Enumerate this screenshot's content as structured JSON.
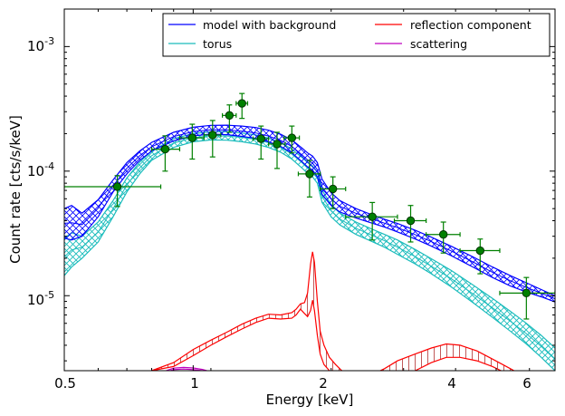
{
  "chart_data": {
    "type": "line",
    "xlabel": "Energy [keV]",
    "ylabel": "Count rate [cts/s/keV]",
    "xscale": "log",
    "yscale": "log",
    "xlim": [
      0.5,
      7.0
    ],
    "ylim": [
      2.5e-06,
      0.002
    ],
    "xticks": [
      {
        "value": 0.5,
        "label": "0.5"
      },
      {
        "value": 1,
        "label": "1"
      },
      {
        "value": 2,
        "label": "2"
      },
      {
        "value": 4,
        "label": "4"
      },
      {
        "value": 6,
        "label": "6"
      }
    ],
    "yticks": [
      {
        "value": 1e-05,
        "base": "10",
        "exp": "-5"
      },
      {
        "value": 0.0001,
        "base": "10",
        "exp": "-4"
      },
      {
        "value": 0.001,
        "base": "10",
        "exp": "-3"
      }
    ],
    "grid": false,
    "legend": {
      "placement": "top-right",
      "columns": 2,
      "entries": [
        {
          "label": "model with background",
          "color": "#0000ff"
        },
        {
          "label": "reflection component",
          "color": "#ff0000"
        },
        {
          "label": "torus",
          "color": "#1bbcbc"
        },
        {
          "label": "scattering",
          "color": "#bf00bf"
        }
      ]
    },
    "series": [
      {
        "key": "model",
        "color": "#0000ff",
        "x": [
          0.5,
          0.52,
          0.55,
          0.6,
          0.65,
          0.7,
          0.75,
          0.8,
          0.9,
          1.0,
          1.1,
          1.2,
          1.3,
          1.4,
          1.5,
          1.6,
          1.7,
          1.8,
          1.85,
          1.9,
          1.95,
          2.0,
          2.1,
          2.2,
          2.4,
          2.6,
          2.8,
          3.0,
          3.3,
          3.6,
          4.0,
          4.5,
          5.0,
          5.5,
          6.0,
          6.5,
          7.0
        ],
        "lower": [
          2.9e-05,
          2.8e-05,
          3e-05,
          4.3e-05,
          6.8e-05,
          9.5e-05,
          0.000122,
          0.000145,
          0.000175,
          0.000192,
          0.000198,
          0.000196,
          0.00019,
          0.000183,
          0.000172,
          0.000158,
          0.00014,
          0.000118,
          0.000108,
          0.000102,
          9e-05,
          6.5e-05,
          5.3e-05,
          4.7e-05,
          4.2e-05,
          3.85e-05,
          3.55e-05,
          3.25e-05,
          2.85e-05,
          2.5e-05,
          2.1e-05,
          1.7e-05,
          1.4e-05,
          1.2e-05,
          1.07e-05,
          9.8e-06,
          8.9e-06
        ],
        "upper": [
          5e-05,
          5.3e-05,
          4.6e-05,
          5.9e-05,
          8.5e-05,
          0.000117,
          0.000145,
          0.00017,
          0.000205,
          0.000225,
          0.000233,
          0.000234,
          0.00023,
          0.000224,
          0.000213,
          0.000198,
          0.000178,
          0.000152,
          0.00014,
          0.000132,
          0.000117,
          8.6e-05,
          6.7e-05,
          5.8e-05,
          5e-05,
          4.5e-05,
          4.1e-05,
          3.8e-05,
          3.35e-05,
          2.95e-05,
          2.5e-05,
          2.05e-05,
          1.7e-05,
          1.45e-05,
          1.27e-05,
          1.12e-05,
          1e-05
        ]
      },
      {
        "key": "torus",
        "color": "#1bbcbc",
        "x": [
          0.5,
          0.52,
          0.55,
          0.6,
          0.65,
          0.7,
          0.75,
          0.8,
          0.9,
          1.0,
          1.1,
          1.2,
          1.3,
          1.4,
          1.5,
          1.6,
          1.7,
          1.8,
          1.85,
          1.9,
          1.95,
          2.0,
          2.1,
          2.2,
          2.4,
          2.6,
          2.8,
          3.0,
          3.3,
          3.6,
          4.0,
          4.5,
          5.0,
          5.5,
          6.0,
          6.5,
          7.0
        ],
        "lower": [
          1.45e-05,
          1.7e-05,
          2e-05,
          2.7e-05,
          4.3e-05,
          6.8e-05,
          9.5e-05,
          0.000122,
          0.000155,
          0.000172,
          0.000178,
          0.000177,
          0.000172,
          0.000165,
          0.000155,
          0.000142,
          0.000125,
          0.000105,
          9.6e-05,
          9e-05,
          8e-05,
          5.6e-05,
          4.3e-05,
          3.7e-05,
          3.1e-05,
          2.75e-05,
          2.45e-05,
          2.15e-05,
          1.8e-05,
          1.5e-05,
          1.18e-05,
          8.8e-06,
          6.7e-06,
          5.2e-06,
          4.1e-06,
          3.2e-06,
          2.5e-06
        ],
        "upper": [
          2.9e-05,
          3.2e-05,
          3e-05,
          3.9e-05,
          5.8e-05,
          8.8e-05,
          0.000118,
          0.000145,
          0.000182,
          0.0002,
          0.000207,
          0.000207,
          0.000202,
          0.000195,
          0.000184,
          0.00017,
          0.00015,
          0.000128,
          0.000117,
          0.00011,
          9.8e-05,
          7e-05,
          5.4e-05,
          4.6e-05,
          3.9e-05,
          3.45e-05,
          3.1e-05,
          2.8e-05,
          2.35e-05,
          1.98e-05,
          1.6e-05,
          1.22e-05,
          9.5e-06,
          7.5e-06,
          6e-06,
          4.8e-06,
          3.8e-06
        ]
      },
      {
        "key": "reflection",
        "color": "#ff0000",
        "x": [
          0.8,
          0.9,
          1.0,
          1.1,
          1.2,
          1.3,
          1.4,
          1.5,
          1.6,
          1.7,
          1.74,
          1.78,
          1.82,
          1.85,
          1.88,
          1.9,
          1.92,
          1.95,
          1.98,
          2.02,
          2.08,
          2.15,
          2.25,
          2.4,
          2.6,
          2.8,
          3.0,
          3.3,
          3.6,
          3.9,
          4.2,
          4.6,
          5.0,
          5.5,
          6.0,
          6.5,
          7.0
        ],
        "lower": [
          2.5e-06,
          2.7e-06,
          3.3e-06,
          4e-06,
          4.7e-06,
          5.4e-06,
          6.1e-06,
          6.6e-06,
          6.5e-06,
          6.6e-06,
          7e-06,
          7.8e-06,
          7.2e-06,
          6.8e-06,
          7.6e-06,
          9.2e-06,
          7.6e-06,
          4.8e-06,
          3.4e-06,
          2.8e-06,
          2.5e-06,
          2.2e-06,
          2e-06,
          1.8e-06,
          1.9e-06,
          2e-06,
          2.2e-06,
          2.5e-06,
          2.9e-06,
          3.2e-06,
          3.2e-06,
          3e-06,
          2.7e-06,
          2.3e-06,
          2e-06,
          1.7e-06,
          1.5e-06
        ],
        "upper": [
          2.5e-06,
          2.9e-06,
          3.7e-06,
          4.4e-06,
          5.1e-06,
          5.9e-06,
          6.6e-06,
          7.1e-06,
          7e-06,
          7.3e-06,
          7.8e-06,
          8.6e-06,
          8.8e-06,
          1.05e-05,
          1.8e-05,
          2.25e-05,
          1.85e-05,
          9e-06,
          5.2e-06,
          4e-06,
          3.2e-06,
          2.8e-06,
          2.4e-06,
          2.1e-06,
          2.3e-06,
          2.6e-06,
          3e-06,
          3.4e-06,
          3.8e-06,
          4.1e-06,
          4e-06,
          3.6e-06,
          3.1e-06,
          2.6e-06,
          2.2e-06,
          1.8e-06,
          1.5e-06
        ]
      },
      {
        "key": "scattering",
        "color": "#bf00bf",
        "x": [
          0.85,
          0.9,
          0.95,
          1.0,
          1.05,
          1.1
        ],
        "lower": [
          2.4e-06,
          2.55e-06,
          2.58e-06,
          2.55e-06,
          2.5e-06,
          2.4e-06
        ],
        "upper": [
          2.45e-06,
          2.62e-06,
          2.66e-06,
          2.63e-06,
          2.56e-06,
          2.45e-06
        ]
      }
    ],
    "data_points": {
      "color": "#008000",
      "points": [
        {
          "x": 0.665,
          "y": 7.5e-05,
          "xlo": 0.5,
          "xhi": 0.84,
          "ylo": 5.2e-05,
          "yhi": 9.2e-05
        },
        {
          "x": 0.86,
          "y": 0.00015,
          "xlo": 0.8,
          "xhi": 0.93,
          "ylo": 0.0001,
          "yhi": 0.000192
        },
        {
          "x": 0.995,
          "y": 0.000185,
          "xlo": 0.93,
          "xhi": 1.06,
          "ylo": 0.000125,
          "yhi": 0.000238
        },
        {
          "x": 1.11,
          "y": 0.000195,
          "xlo": 1.06,
          "xhi": 1.16,
          "ylo": 0.00013,
          "yhi": 0.000255
        },
        {
          "x": 1.215,
          "y": 0.00028,
          "xlo": 1.17,
          "xhi": 1.26,
          "ylo": 0.000205,
          "yhi": 0.00034
        },
        {
          "x": 1.3,
          "y": 0.00035,
          "xlo": 1.26,
          "xhi": 1.34,
          "ylo": 0.000265,
          "yhi": 0.00042
        },
        {
          "x": 1.44,
          "y": 0.000182,
          "xlo": 1.38,
          "xhi": 1.5,
          "ylo": 0.000125,
          "yhi": 0.00023
        },
        {
          "x": 1.57,
          "y": 0.000165,
          "xlo": 1.5,
          "xhi": 1.64,
          "ylo": 0.000105,
          "yhi": 0.000205
        },
        {
          "x": 1.7,
          "y": 0.000185,
          "xlo": 1.63,
          "xhi": 1.77,
          "ylo": 0.00014,
          "yhi": 0.00023
        },
        {
          "x": 1.87,
          "y": 9.5e-05,
          "xlo": 1.76,
          "xhi": 1.98,
          "ylo": 6.2e-05,
          "yhi": 0.000122
        },
        {
          "x": 2.12,
          "y": 7.2e-05,
          "xlo": 1.98,
          "xhi": 2.27,
          "ylo": 5e-05,
          "yhi": 9e-05
        },
        {
          "x": 2.62,
          "y": 4.3e-05,
          "xlo": 2.27,
          "xhi": 3.0,
          "ylo": 2.8e-05,
          "yhi": 5.6e-05
        },
        {
          "x": 3.22,
          "y": 4e-05,
          "xlo": 2.95,
          "xhi": 3.5,
          "ylo": 2.7e-05,
          "yhi": 5.3e-05
        },
        {
          "x": 3.84,
          "y": 3.1e-05,
          "xlo": 3.5,
          "xhi": 4.2,
          "ylo": 2.2e-05,
          "yhi": 3.9e-05
        },
        {
          "x": 4.68,
          "y": 2.3e-05,
          "xlo": 4.2,
          "xhi": 5.2,
          "ylo": 1.5e-05,
          "yhi": 2.85e-05
        },
        {
          "x": 6.0,
          "y": 1.05e-05,
          "xlo": 5.2,
          "xhi": 7.0,
          "ylo": 6.5e-06,
          "yhi": 1.4e-05
        }
      ]
    }
  }
}
